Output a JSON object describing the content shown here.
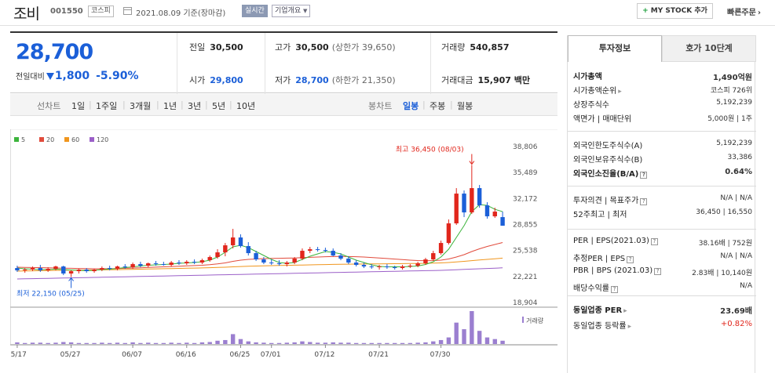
{
  "header": {
    "name": "조비",
    "code": "001550",
    "market": "코스피",
    "date": "2021.08.09 기준(장마감)",
    "live": "실시간",
    "overview": "기업개요",
    "mystock_plus": "+",
    "mystock": "MY STOCK 추가",
    "quick": "빠른주문"
  },
  "price": {
    "current": "28,700",
    "change_label": "전일대비",
    "change": "1,800",
    "change_pct": "-5.90%"
  },
  "quote": {
    "prev_label": "전일",
    "prev": "30,500",
    "high_label": "고가",
    "high": "30,500",
    "upper_limit": "(상한가 39,650)",
    "volume_label": "거래량",
    "volume": "540,857",
    "open_label": "시가",
    "open": "29,800",
    "low_label": "저가",
    "low": "28,700",
    "lower_limit": "(하한가 21,350)",
    "amount_label": "거래대금",
    "amount": "15,907 백만"
  },
  "periods": {
    "line_label": "선차트",
    "line": [
      "1일",
      "1주일",
      "3개월",
      "1년",
      "3년",
      "5년",
      "10년"
    ],
    "candle_label": "봉차트",
    "candle": [
      "일봉",
      "주봉",
      "월봉"
    ],
    "active_candle": "일봉"
  },
  "chart_data": {
    "type": "candlestick",
    "legend": [
      {
        "name": "5",
        "color": "#3cb43c"
      },
      {
        "name": "20",
        "color": "#e14b3c"
      },
      {
        "name": "60",
        "color": "#f0961e"
      },
      {
        "name": "120",
        "color": "#9b5fc8"
      }
    ],
    "y_ticks": [
      "38,806",
      "35,489",
      "32,172",
      "28,855",
      "25,538",
      "22,221",
      "18,904"
    ],
    "ylim": [
      18904,
      38806
    ],
    "x_ticks": [
      "05/17",
      "05/27",
      "06/07",
      "06/16",
      "06/25",
      "07/01",
      "07/12",
      "07/21",
      "07/30"
    ],
    "max_label": "최고 36,450 (08/03)",
    "min_label": "최저 22,150 (05/25)",
    "volume_label": "거래량",
    "candles": [
      {
        "o": 23300,
        "h": 23600,
        "l": 22800,
        "c": 23000
      },
      {
        "o": 23000,
        "h": 23300,
        "l": 22700,
        "c": 23100
      },
      {
        "o": 23100,
        "h": 23500,
        "l": 22900,
        "c": 23300
      },
      {
        "o": 23300,
        "h": 23700,
        "l": 22800,
        "c": 23000
      },
      {
        "o": 23000,
        "h": 23400,
        "l": 22800,
        "c": 23200
      },
      {
        "o": 23200,
        "h": 23600,
        "l": 23000,
        "c": 23500
      },
      {
        "o": 23500,
        "h": 23600,
        "l": 22400,
        "c": 22600
      },
      {
        "o": 22600,
        "h": 23000,
        "l": 22150,
        "c": 22900
      },
      {
        "o": 22900,
        "h": 23200,
        "l": 22600,
        "c": 23100
      },
      {
        "o": 23100,
        "h": 23300,
        "l": 22700,
        "c": 22900
      },
      {
        "o": 22900,
        "h": 23200,
        "l": 22700,
        "c": 23100
      },
      {
        "o": 23100,
        "h": 23500,
        "l": 22900,
        "c": 23300
      },
      {
        "o": 23300,
        "h": 23600,
        "l": 23000,
        "c": 23200
      },
      {
        "o": 23200,
        "h": 23600,
        "l": 23000,
        "c": 23500
      },
      {
        "o": 23500,
        "h": 23800,
        "l": 23200,
        "c": 23400
      },
      {
        "o": 23400,
        "h": 24000,
        "l": 23200,
        "c": 23800
      },
      {
        "o": 23800,
        "h": 24100,
        "l": 23400,
        "c": 23600
      },
      {
        "o": 23600,
        "h": 24000,
        "l": 23400,
        "c": 23900
      },
      {
        "o": 23900,
        "h": 24200,
        "l": 23600,
        "c": 23800
      },
      {
        "o": 23800,
        "h": 24100,
        "l": 23600,
        "c": 23700
      },
      {
        "o": 23700,
        "h": 24200,
        "l": 23500,
        "c": 24000
      },
      {
        "o": 24000,
        "h": 24300,
        "l": 23700,
        "c": 23900
      },
      {
        "o": 23900,
        "h": 24300,
        "l": 23700,
        "c": 24100
      },
      {
        "o": 24100,
        "h": 24400,
        "l": 23800,
        "c": 24000
      },
      {
        "o": 24000,
        "h": 24500,
        "l": 23800,
        "c": 24300
      },
      {
        "o": 24300,
        "h": 24900,
        "l": 24100,
        "c": 24700
      },
      {
        "o": 24700,
        "h": 25700,
        "l": 24500,
        "c": 25300
      },
      {
        "o": 25300,
        "h": 26500,
        "l": 24800,
        "c": 26200
      },
      {
        "o": 26200,
        "h": 28300,
        "l": 25800,
        "c": 27200
      },
      {
        "o": 27200,
        "h": 27600,
        "l": 25900,
        "c": 26100
      },
      {
        "o": 26100,
        "h": 26600,
        "l": 24900,
        "c": 25200
      },
      {
        "o": 25200,
        "h": 25500,
        "l": 24200,
        "c": 24400
      },
      {
        "o": 24400,
        "h": 24700,
        "l": 23800,
        "c": 24000
      },
      {
        "o": 24000,
        "h": 24400,
        "l": 23700,
        "c": 23900
      },
      {
        "o": 23900,
        "h": 24300,
        "l": 23600,
        "c": 23800
      },
      {
        "o": 23800,
        "h": 24200,
        "l": 23500,
        "c": 24000
      },
      {
        "o": 24000,
        "h": 24700,
        "l": 23800,
        "c": 24500
      },
      {
        "o": 24500,
        "h": 25800,
        "l": 24300,
        "c": 25500
      },
      {
        "o": 25500,
        "h": 26000,
        "l": 25200,
        "c": 25700
      },
      {
        "o": 25700,
        "h": 26000,
        "l": 25400,
        "c": 25600
      },
      {
        "o": 25600,
        "h": 25900,
        "l": 25300,
        "c": 25500
      },
      {
        "o": 25500,
        "h": 25800,
        "l": 24800,
        "c": 24900
      },
      {
        "o": 24900,
        "h": 25200,
        "l": 24300,
        "c": 24500
      },
      {
        "o": 24500,
        "h": 24800,
        "l": 23800,
        "c": 24000
      },
      {
        "o": 24000,
        "h": 24300,
        "l": 23500,
        "c": 23700
      },
      {
        "o": 23700,
        "h": 24000,
        "l": 23300,
        "c": 23500
      },
      {
        "o": 23500,
        "h": 23800,
        "l": 23200,
        "c": 23400
      },
      {
        "o": 23400,
        "h": 23700,
        "l": 23100,
        "c": 23500
      },
      {
        "o": 23500,
        "h": 23800,
        "l": 23200,
        "c": 23400
      },
      {
        "o": 23400,
        "h": 23600,
        "l": 23100,
        "c": 23300
      },
      {
        "o": 23300,
        "h": 23700,
        "l": 23100,
        "c": 23500
      },
      {
        "o": 23500,
        "h": 23800,
        "l": 23300,
        "c": 23600
      },
      {
        "o": 23600,
        "h": 24100,
        "l": 23400,
        "c": 23900
      },
      {
        "o": 23900,
        "h": 24600,
        "l": 23700,
        "c": 24400
      },
      {
        "o": 24400,
        "h": 25500,
        "l": 24200,
        "c": 25200
      },
      {
        "o": 25200,
        "h": 26800,
        "l": 25000,
        "c": 26500
      },
      {
        "o": 26500,
        "h": 29500,
        "l": 26300,
        "c": 29000
      },
      {
        "o": 29000,
        "h": 33500,
        "l": 28800,
        "c": 32800
      },
      {
        "o": 32800,
        "h": 33200,
        "l": 29800,
        "c": 30400
      },
      {
        "o": 30400,
        "h": 36450,
        "l": 30200,
        "c": 33500
      },
      {
        "o": 33500,
        "h": 33900,
        "l": 31000,
        "c": 31300
      },
      {
        "o": 31300,
        "h": 31700,
        "l": 29600,
        "c": 29900
      },
      {
        "o": 29900,
        "h": 31000,
        "l": 29700,
        "c": 30500
      },
      {
        "o": 29800,
        "h": 30500,
        "l": 28700,
        "c": 28700
      }
    ],
    "volume": [
      0.05,
      0.03,
      0.04,
      0.04,
      0.03,
      0.04,
      0.06,
      0.05,
      0.03,
      0.03,
      0.03,
      0.04,
      0.03,
      0.04,
      0.03,
      0.05,
      0.03,
      0.04,
      0.03,
      0.03,
      0.04,
      0.03,
      0.04,
      0.03,
      0.05,
      0.06,
      0.1,
      0.12,
      0.3,
      0.15,
      0.08,
      0.05,
      0.04,
      0.03,
      0.03,
      0.04,
      0.05,
      0.08,
      0.06,
      0.04,
      0.04,
      0.05,
      0.04,
      0.04,
      0.03,
      0.03,
      0.03,
      0.03,
      0.03,
      0.03,
      0.03,
      0.03,
      0.04,
      0.05,
      0.08,
      0.12,
      0.2,
      0.65,
      0.45,
      1.0,
      0.4,
      0.2,
      0.15,
      0.1
    ],
    "ma5": [
      23300,
      23200,
      23150,
      23100,
      23100,
      23150,
      23100,
      23050,
      23000,
      22950,
      23000,
      23100,
      23150,
      23250,
      23350,
      23450,
      23550,
      23650,
      23700,
      23750,
      23800,
      23900,
      23950,
      24000,
      24100,
      24300,
      24700,
      25300,
      26000,
      26200,
      25900,
      25400,
      24900,
      24400,
      24000,
      23900,
      24000,
      24400,
      24800,
      25100,
      25400,
      25300,
      25100,
      24700,
      24300,
      24000,
      23700,
      23500,
      23450,
      23450,
      23450,
      23500,
      23550,
      23750,
      24100,
      24700,
      25700,
      27200,
      28700,
      30500,
      31400,
      31300,
      30800,
      30500
    ],
    "ma20": [
      23400,
      23380,
      23360,
      23340,
      23320,
      23300,
      23280,
      23260,
      23240,
      23220,
      23200,
      23200,
      23210,
      23230,
      23260,
      23290,
      23330,
      23370,
      23410,
      23450,
      23490,
      23530,
      23570,
      23610,
      23650,
      23720,
      23820,
      23950,
      24150,
      24300,
      24400,
      24450,
      24500,
      24520,
      24540,
      24560,
      24580,
      24620,
      24660,
      24700,
      24740,
      24760,
      24770,
      24760,
      24740,
      24700,
      24640,
      24580,
      24510,
      24440,
      24370,
      24300,
      24250,
      24230,
      24250,
      24300,
      24450,
      24700,
      25000,
      25400,
      25750,
      26050,
      26300,
      26550
    ],
    "ma60": [
      22900,
      22920,
      22940,
      22960,
      22980,
      23000,
      23010,
      23020,
      23030,
      23040,
      23050,
      23060,
      23070,
      23090,
      23110,
      23130,
      23150,
      23170,
      23190,
      23210,
      23230,
      23250,
      23270,
      23290,
      23310,
      23340,
      23370,
      23400,
      23450,
      23490,
      23520,
      23550,
      23580,
      23600,
      23620,
      23640,
      23660,
      23680,
      23700,
      23720,
      23740,
      23760,
      23780,
      23790,
      23800,
      23810,
      23820,
      23830,
      23840,
      23850,
      23860,
      23870,
      23880,
      23900,
      23920,
      23950,
      24000,
      24070,
      24150,
      24240,
      24320,
      24400,
      24480,
      24560
    ],
    "ma120": [
      21900,
      21920,
      21940,
      21960,
      21980,
      22000,
      22020,
      22040,
      22060,
      22080,
      22100,
      22120,
      22140,
      22160,
      22180,
      22200,
      22220,
      22240,
      22260,
      22280,
      22300,
      22320,
      22340,
      22360,
      22380,
      22400,
      22420,
      22440,
      22460,
      22480,
      22500,
      22520,
      22540,
      22560,
      22580,
      22600,
      22620,
      22640,
      22660,
      22680,
      22700,
      22720,
      22740,
      22760,
      22780,
      22800,
      22820,
      22840,
      22860,
      22880,
      22900,
      22920,
      22940,
      22960,
      22980,
      23000,
      23040,
      23080,
      23120,
      23160,
      23200,
      23240,
      23280,
      23320
    ]
  },
  "side": {
    "tabs": [
      "투자정보",
      "호가 10단계"
    ],
    "s1": [
      {
        "l": "시가총액",
        "r": "1,490억원",
        "bold": true
      },
      {
        "l": "시가총액순위",
        "r": "코스피 726위",
        "arrow": true
      },
      {
        "l": "상장주식수",
        "r": "5,192,239"
      },
      {
        "l": "액면가 | 매매단위",
        "r": "5,000원 | 1주"
      }
    ],
    "s2": [
      {
        "l": "외국인한도주식수(A)",
        "r": "5,192,239"
      },
      {
        "l": "외국인보유주식수(B)",
        "r": "33,386"
      },
      {
        "l": "외국인소진율(B/A)",
        "r": "0.64%",
        "bold": true,
        "info": true
      }
    ],
    "s3": [
      {
        "l": "투자의견 | 목표주가",
        "r": "N/A | N/A",
        "info": true
      },
      {
        "l": "52주최고 | 최저",
        "r": "36,450 | 16,550"
      }
    ],
    "s4": [
      {
        "l": "PER | EPS(2021.03)",
        "r": "38.16배 | 752원",
        "info": true
      },
      {
        "l": "추정PER | EPS",
        "r": "N/A | N/A",
        "info": true
      },
      {
        "l": "PBR | BPS (2021.03)",
        "r": "2.83배 | 10,140원",
        "info": true
      },
      {
        "l": "배당수익률",
        "r": "N/A",
        "info": true
      }
    ],
    "s5": [
      {
        "l": "동일업종 PER",
        "r": "23.69배",
        "bold": true,
        "arrow": true
      },
      {
        "l": "동일업종 등락률",
        "r": "+0.82%",
        "arrow": true,
        "red": true
      }
    ]
  }
}
